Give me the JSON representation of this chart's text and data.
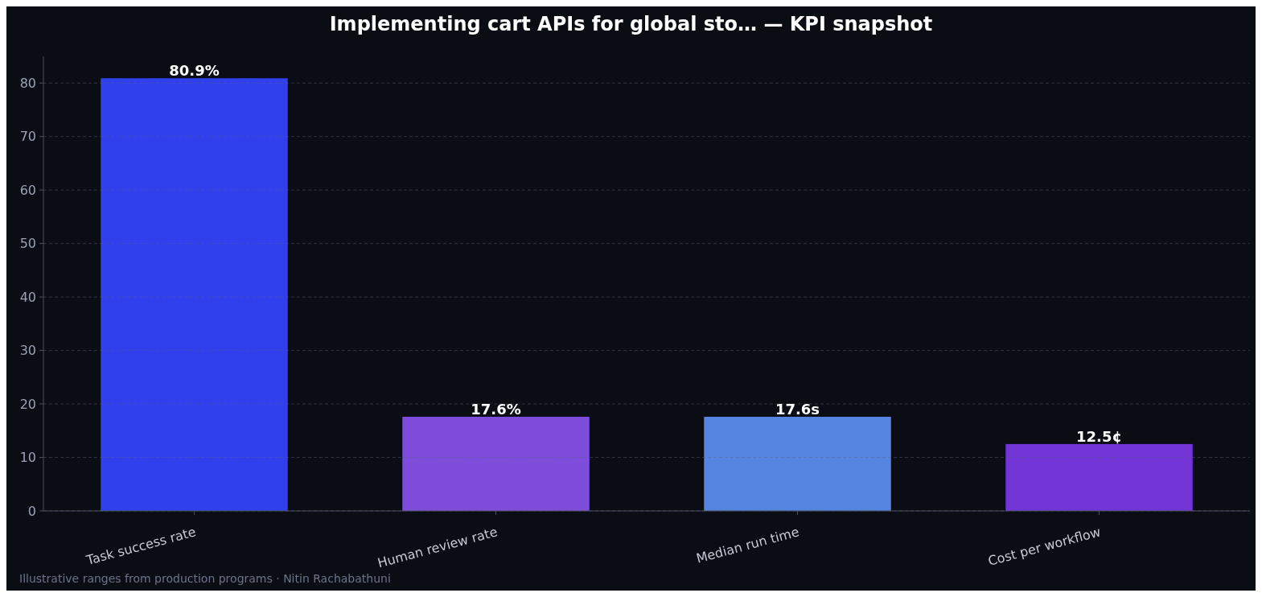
{
  "chart_data": {
    "type": "bar",
    "title": "Implementing cart APIs for global sto… — KPI snapshot",
    "categories": [
      "Task success rate",
      "Human review rate",
      "Median run time",
      "Cost per workflow"
    ],
    "values": [
      80.9,
      17.6,
      17.6,
      12.5
    ],
    "colors": [
      "#2f40ec",
      "#7f4ddc",
      "#5585e0",
      "#7335d8"
    ],
    "value_labels": [
      "80.9%",
      "17.6%",
      "17.6s",
      "12.5¢"
    ],
    "ylim": [
      0,
      85
    ],
    "yticks": [
      0,
      10,
      20,
      30,
      40,
      50,
      60,
      70,
      80
    ],
    "grid": "y",
    "annotations": [
      "Illustrative ranges from production programs · Nitin Rachabathuni"
    ]
  }
}
